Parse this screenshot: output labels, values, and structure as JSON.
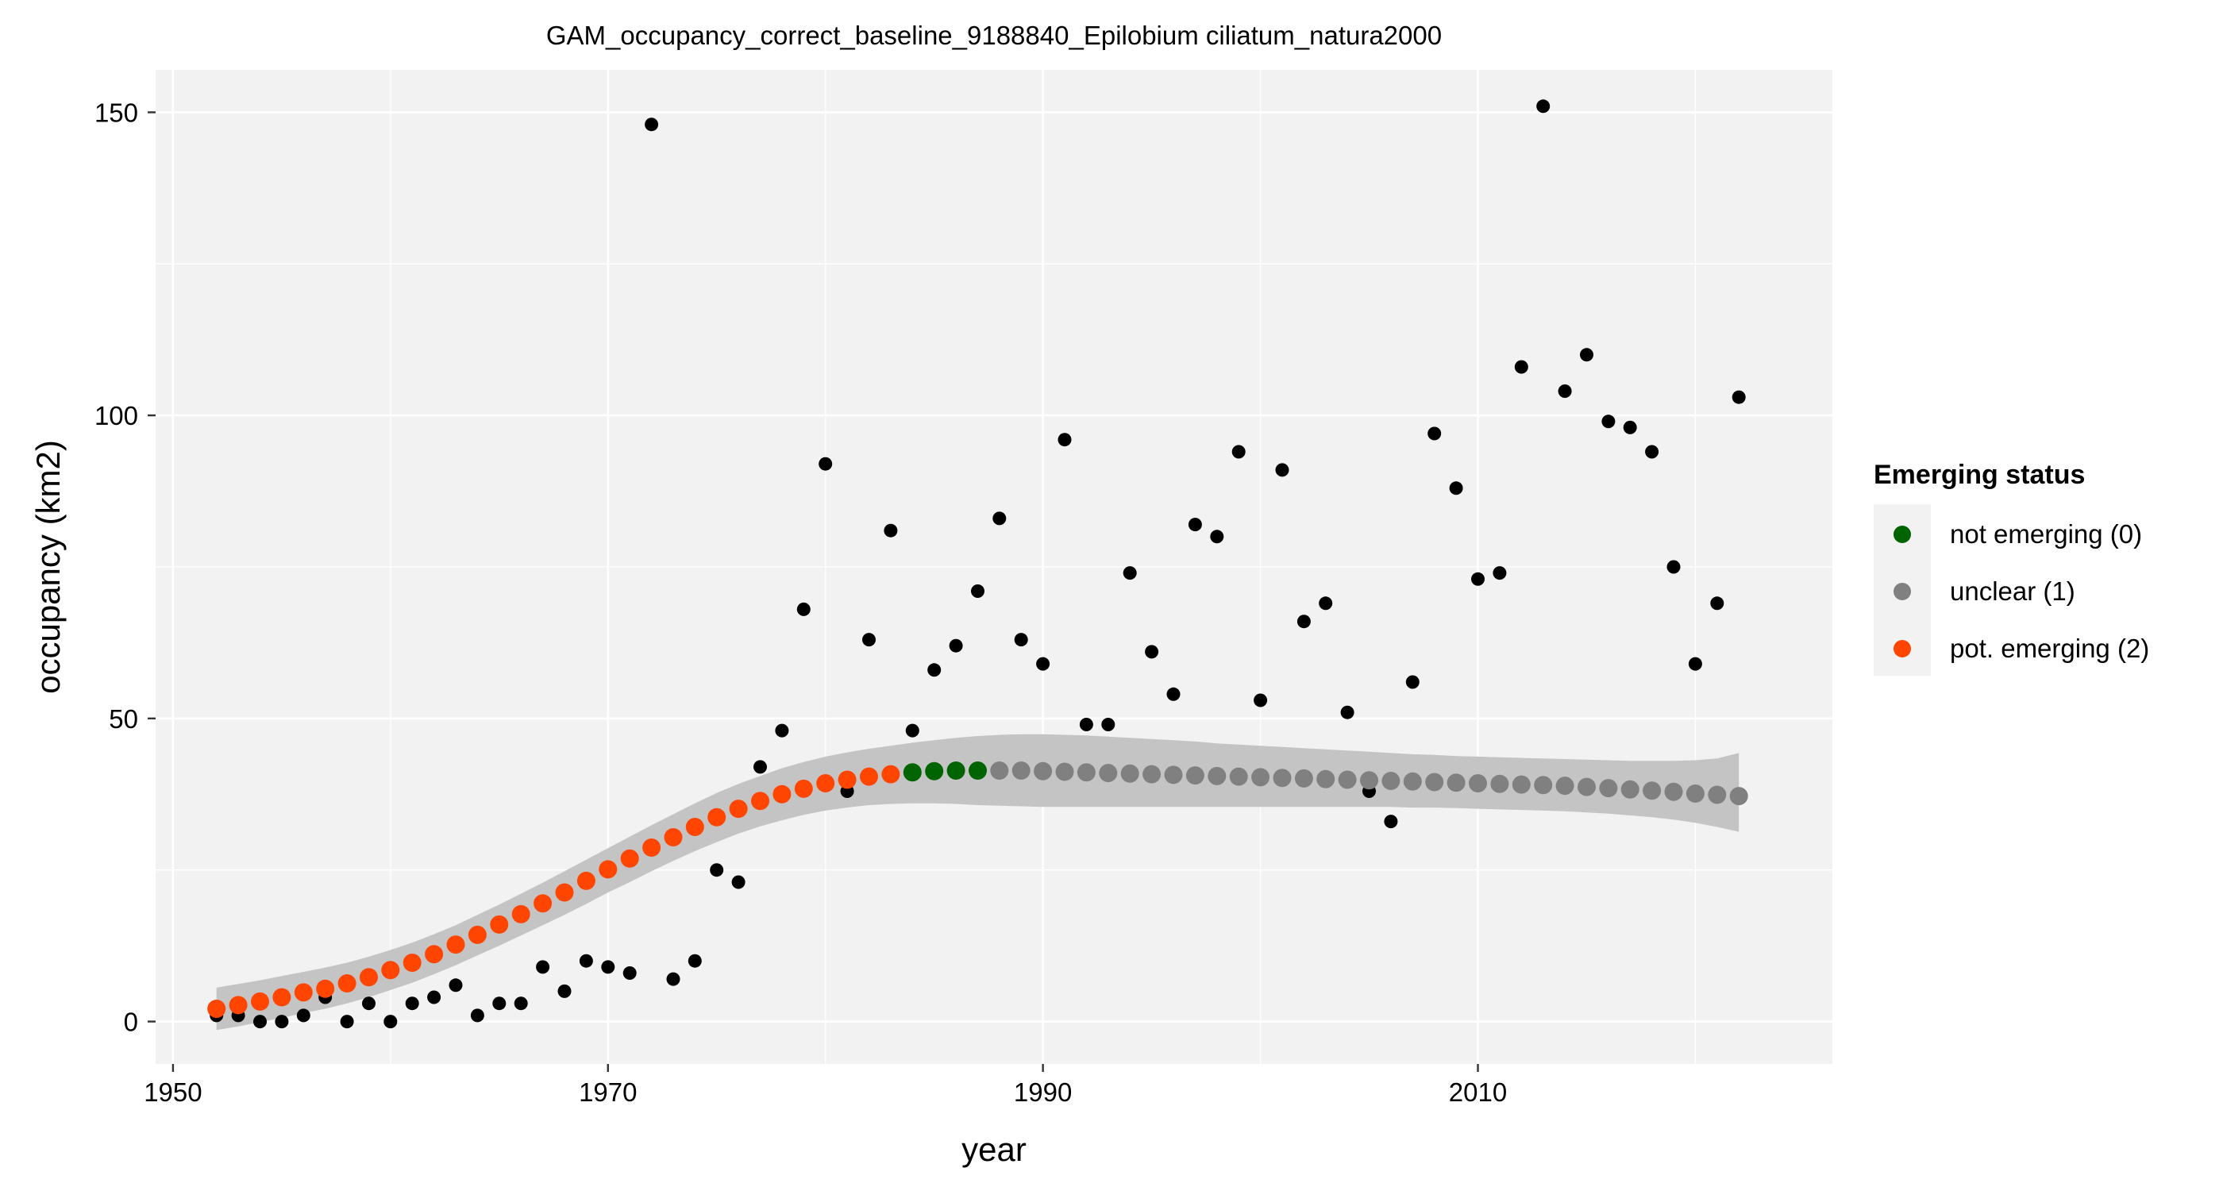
{
  "chart_data": {
    "type": "scatter",
    "title": "GAM_occupancy_correct_baseline_9188840_Epilobium ciliatum_natura2000",
    "xlabel": "year",
    "ylabel": "occupancy (km2)",
    "xlim": [
      1949.2,
      2026.3
    ],
    "ylim": [
      -7,
      157
    ],
    "x_ticks": [
      1950,
      1970,
      1990,
      2010
    ],
    "y_ticks": [
      0,
      50,
      100,
      150
    ],
    "grid": true,
    "legend": {
      "title": "Emerging status",
      "position": "right",
      "entries": [
        {
          "label": "not emerging (0)",
          "color": "#006400"
        },
        {
          "label": "unclear (1)",
          "color": "#808080"
        },
        {
          "label": "pot. emerging (2)",
          "color": "#ff4500"
        }
      ]
    },
    "colors": {
      "observed": "#000000",
      "band": "#c4c4c4",
      "panel": "#f2f2f2",
      "grid": "#ffffff"
    },
    "observed": {
      "x": [
        1952,
        1953,
        1954,
        1955,
        1956,
        1957,
        1958,
        1959,
        1960,
        1961,
        1962,
        1963,
        1964,
        1965,
        1966,
        1967,
        1968,
        1969,
        1970,
        1971,
        1972,
        1973,
        1974,
        1975,
        1976,
        1977,
        1978,
        1979,
        1980,
        1981,
        1982,
        1983,
        1984,
        1985,
        1986,
        1987,
        1988,
        1989,
        1990,
        1991,
        1992,
        1993,
        1994,
        1995,
        1996,
        1997,
        1998,
        1999,
        2000,
        2001,
        2002,
        2003,
        2004,
        2005,
        2006,
        2007,
        2008,
        2009,
        2010,
        2011,
        2012,
        2013,
        2014,
        2015,
        2016,
        2017,
        2018,
        2019,
        2020,
        2021,
        2022
      ],
      "y": [
        1,
        1,
        0,
        0,
        1,
        4,
        0,
        3,
        0,
        3,
        4,
        6,
        1,
        3,
        3,
        9,
        5,
        10,
        9,
        8,
        148,
        7,
        10,
        25,
        23,
        42,
        48,
        68,
        92,
        38,
        63,
        81,
        48,
        58,
        62,
        71,
        83,
        63,
        59,
        96,
        49,
        49,
        74,
        61,
        54,
        82,
        80,
        94,
        53,
        91,
        66,
        69,
        51,
        38,
        33,
        56,
        97,
        88,
        73,
        74,
        108,
        151,
        104,
        110,
        99,
        98,
        94,
        75,
        59,
        69,
        103
      ]
    },
    "fitted": {
      "x": [
        1952,
        1953,
        1954,
        1955,
        1956,
        1957,
        1958,
        1959,
        1960,
        1961,
        1962,
        1963,
        1964,
        1965,
        1966,
        1967,
        1968,
        1969,
        1970,
        1971,
        1972,
        1973,
        1974,
        1975,
        1976,
        1977,
        1978,
        1979,
        1980,
        1981,
        1982,
        1983,
        1984,
        1985,
        1986,
        1987,
        1988,
        1989,
        1990,
        1991,
        1992,
        1993,
        1994,
        1995,
        1996,
        1997,
        1998,
        1999,
        2000,
        2001,
        2002,
        2003,
        2004,
        2005,
        2006,
        2007,
        2008,
        2009,
        2010,
        2011,
        2012,
        2013,
        2014,
        2015,
        2016,
        2017,
        2018,
        2019,
        2020,
        2021,
        2022
      ],
      "y": [
        2.1,
        2.7,
        3.3,
        4.0,
        4.8,
        5.4,
        6.3,
        7.3,
        8.5,
        9.7,
        11.1,
        12.7,
        14.3,
        16.0,
        17.7,
        19.5,
        21.3,
        23.2,
        25.1,
        26.9,
        28.7,
        30.4,
        32.1,
        33.7,
        35.1,
        36.4,
        37.5,
        38.4,
        39.3,
        39.9,
        40.4,
        40.8,
        41.1,
        41.3,
        41.4,
        41.4,
        41.4,
        41.4,
        41.3,
        41.2,
        41.1,
        41.0,
        40.9,
        40.8,
        40.7,
        40.6,
        40.5,
        40.4,
        40.3,
        40.2,
        40.1,
        40.0,
        39.9,
        39.8,
        39.7,
        39.6,
        39.5,
        39.4,
        39.3,
        39.2,
        39.1,
        39.0,
        38.9,
        38.7,
        38.5,
        38.3,
        38.1,
        37.9,
        37.6,
        37.4,
        37.2
      ],
      "lower": [
        -1.4,
        -0.8,
        -0.1,
        0.6,
        1.4,
        2.1,
        3.0,
        4.0,
        5.2,
        6.4,
        7.8,
        9.3,
        10.9,
        12.5,
        14.2,
        15.9,
        17.6,
        19.4,
        21.3,
        23.0,
        24.8,
        26.5,
        28.1,
        29.6,
        31.0,
        32.2,
        33.2,
        34.1,
        34.8,
        35.3,
        35.7,
        35.9,
        36.0,
        36.0,
        35.9,
        35.7,
        35.6,
        35.5,
        35.4,
        35.4,
        35.4,
        35.4,
        35.4,
        35.4,
        35.4,
        35.4,
        35.4,
        35.4,
        35.4,
        35.4,
        35.4,
        35.4,
        35.4,
        35.4,
        35.4,
        35.3,
        35.3,
        35.2,
        35.1,
        35.0,
        34.9,
        34.8,
        34.7,
        34.5,
        34.3,
        34.0,
        33.7,
        33.3,
        32.8,
        32.1,
        31.3
      ],
      "upper": [
        5.6,
        6.2,
        6.8,
        7.5,
        8.2,
        8.9,
        9.7,
        10.7,
        11.8,
        13.0,
        14.4,
        15.9,
        17.6,
        19.3,
        21.1,
        22.9,
        24.8,
        26.7,
        28.6,
        30.5,
        32.4,
        34.2,
        36.0,
        37.7,
        39.2,
        40.5,
        41.8,
        42.8,
        43.7,
        44.4,
        45.0,
        45.5,
        46.0,
        46.4,
        46.8,
        47.1,
        47.3,
        47.4,
        47.4,
        47.3,
        47.2,
        47.0,
        46.8,
        46.6,
        46.4,
        46.2,
        45.9,
        45.7,
        45.5,
        45.3,
        45.1,
        44.9,
        44.7,
        44.5,
        44.3,
        44.1,
        44.0,
        43.8,
        43.7,
        43.6,
        43.5,
        43.4,
        43.3,
        43.2,
        43.1,
        43.0,
        43.0,
        43.0,
        43.1,
        43.4,
        44.3
      ],
      "status": [
        2,
        2,
        2,
        2,
        2,
        2,
        2,
        2,
        2,
        2,
        2,
        2,
        2,
        2,
        2,
        2,
        2,
        2,
        2,
        2,
        2,
        2,
        2,
        2,
        2,
        2,
        2,
        2,
        2,
        2,
        2,
        2,
        0,
        0,
        0,
        0,
        1,
        1,
        1,
        1,
        1,
        1,
        1,
        1,
        1,
        1,
        1,
        1,
        1,
        1,
        1,
        1,
        1,
        1,
        1,
        1,
        1,
        1,
        1,
        1,
        1,
        1,
        1,
        1,
        1,
        1,
        1,
        1,
        1,
        1,
        1
      ]
    }
  }
}
